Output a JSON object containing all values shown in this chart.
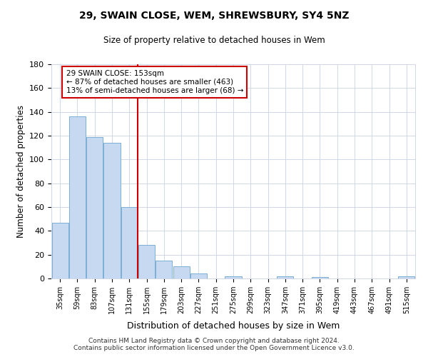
{
  "title": "29, SWAIN CLOSE, WEM, SHREWSBURY, SY4 5NZ",
  "subtitle": "Size of property relative to detached houses in Wem",
  "xlabel": "Distribution of detached houses by size in Wem",
  "ylabel": "Number of detached properties",
  "bar_labels": [
    "35sqm",
    "59sqm",
    "83sqm",
    "107sqm",
    "131sqm",
    "155sqm",
    "179sqm",
    "203sqm",
    "227sqm",
    "251sqm",
    "275sqm",
    "299sqm",
    "323sqm",
    "347sqm",
    "371sqm",
    "395sqm",
    "419sqm",
    "443sqm",
    "467sqm",
    "491sqm",
    "515sqm"
  ],
  "bar_values": [
    47,
    136,
    119,
    114,
    60,
    28,
    15,
    10,
    4,
    0,
    2,
    0,
    0,
    2,
    0,
    1,
    0,
    0,
    0,
    0,
    2
  ],
  "bar_color": "#c6d9f0",
  "bar_edge_color": "#7bafd4",
  "vline_x_idx": 5,
  "vline_color": "#cc0000",
  "annotation_text": "29 SWAIN CLOSE: 153sqm\n← 87% of detached houses are smaller (463)\n13% of semi-detached houses are larger (68) →",
  "annotation_box_color": "#ffffff",
  "annotation_box_edge": "#cc0000",
  "ylim": [
    0,
    180
  ],
  "yticks": [
    0,
    20,
    40,
    60,
    80,
    100,
    120,
    140,
    160,
    180
  ],
  "footer": "Contains HM Land Registry data © Crown copyright and database right 2024.\nContains public sector information licensed under the Open Government Licence v3.0.",
  "background_color": "#ffffff",
  "grid_color": "#d0d8e8"
}
